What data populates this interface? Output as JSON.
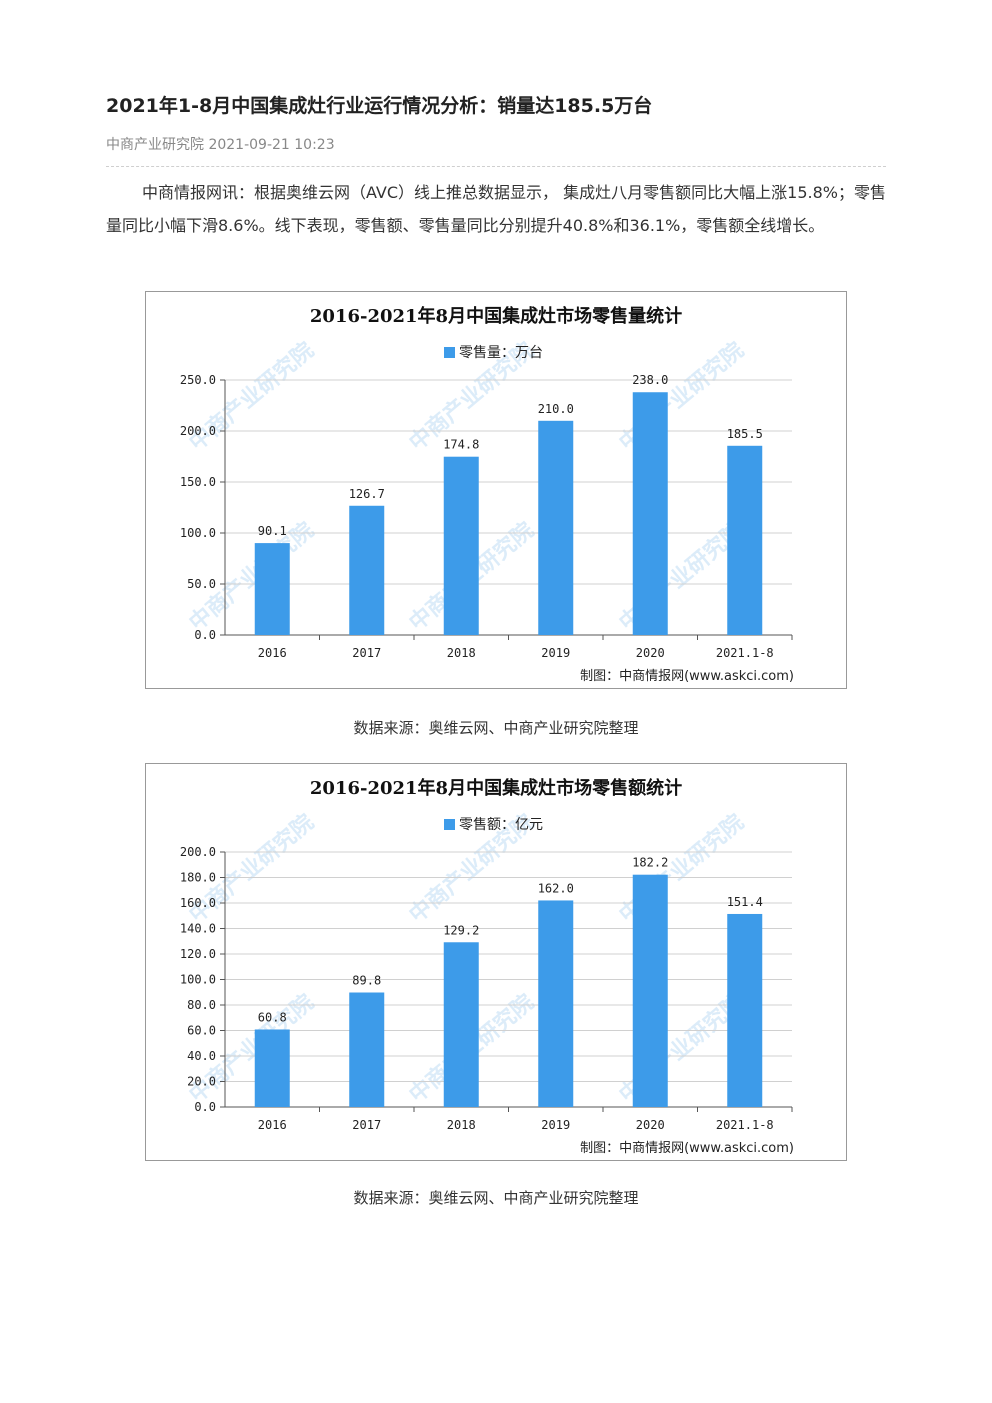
{
  "article": {
    "title": "2021年1-8月中国集成灶行业运行情况分析：销量达185.5万台",
    "meta": "中商产业研究院 2021-09-21 10:23",
    "paragraph": "中商情报网讯：根据奥维云网（AVC）线上推总数据显示， 集成灶八月零售额同比大幅上涨15.8%；零售量同比小幅下滑8.6%。线下表现，零售额、零售量同比分别提升40.8%和36.1%，零售额全线增长。"
  },
  "watermark": "中商产业研究院",
  "charts": [
    {
      "credit": "制图：中商情报网(www.askci.com)",
      "source": "数据来源：奥维云网、中商产业研究院整理"
    },
    {
      "credit": "制图：中商情报网(www.askci.com)",
      "source": "数据来源：奥维云网、中商产业研究院整理"
    }
  ],
  "chart_data": [
    {
      "type": "bar",
      "title": "2016-2021年8月中国集成灶市场零售量统计",
      "categories": [
        "2016",
        "2017",
        "2018",
        "2019",
        "2020",
        "2021.1-8"
      ],
      "series": [
        {
          "name": "零售量：万台",
          "values": [
            90.1,
            126.7,
            174.8,
            210.0,
            238.0,
            185.5
          ]
        }
      ],
      "data_labels": [
        "90.1",
        "126.7",
        "174.8",
        "210.0",
        "238.0",
        "185.5"
      ],
      "yticks": [
        "0.0",
        "50.0",
        "100.0",
        "150.0",
        "200.0",
        "250.0"
      ],
      "ylim": [
        0,
        250
      ],
      "ystep": 50,
      "grid": true,
      "legend_position": "top-center",
      "color": "#3d9be9"
    },
    {
      "type": "bar",
      "title": "2016-2021年8月中国集成灶市场零售额统计",
      "categories": [
        "2016",
        "2017",
        "2018",
        "2019",
        "2020",
        "2021.1-8"
      ],
      "series": [
        {
          "name": "零售额：亿元",
          "values": [
            60.8,
            89.8,
            129.2,
            162.0,
            182.2,
            151.4
          ]
        }
      ],
      "data_labels": [
        "60.8",
        "89.8",
        "129.2",
        "162.0",
        "182.2",
        "151.4"
      ],
      "yticks": [
        "0.0",
        "20.0",
        "40.0",
        "60.0",
        "80.0",
        "100.0",
        "120.0",
        "140.0",
        "160.0",
        "180.0",
        "200.0"
      ],
      "ylim": [
        0,
        200
      ],
      "ystep": 20,
      "grid": true,
      "legend_position": "top-center",
      "color": "#3d9be9"
    }
  ]
}
